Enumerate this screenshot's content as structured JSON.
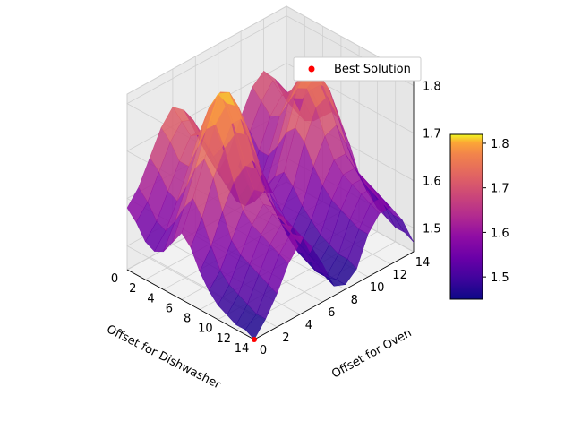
{
  "chart_data": {
    "type": "surface3d",
    "x_label": "Offset for Dishwasher",
    "y_label": "Offset for Oven",
    "x_ticks": [
      "0",
      "2",
      "4",
      "6",
      "8",
      "10",
      "12",
      "14"
    ],
    "y_ticks": [
      "0",
      "2",
      "4",
      "6",
      "8",
      "10",
      "12",
      "14"
    ],
    "z_ticks": [
      "1.5",
      "1.6",
      "1.7",
      "1.8"
    ],
    "x_range": [
      0,
      14
    ],
    "y_range": [
      0,
      14
    ],
    "z_range": [
      1.45,
      1.82
    ],
    "colormap": "plasma",
    "colorbar_ticks": [
      "1.5",
      "1.6",
      "1.7",
      "1.8"
    ],
    "colorbar_range": [
      1.45,
      1.82
    ],
    "grid": true,
    "legend": {
      "placement": "top-right",
      "entries": [
        {
          "label": "Best Solution",
          "marker": "dot",
          "color": "#ff0000"
        }
      ]
    },
    "best_solution": {
      "x": 14,
      "y": 0,
      "z": 1.45
    },
    "surface_z": [
      [
        1.58,
        1.61,
        1.66,
        1.71,
        1.74,
        1.72,
        1.66,
        1.6,
        1.55,
        1.58,
        1.64,
        1.69,
        1.71,
        1.68,
        1.62
      ],
      [
        1.56,
        1.59,
        1.64,
        1.69,
        1.72,
        1.71,
        1.65,
        1.58,
        1.53,
        1.56,
        1.62,
        1.67,
        1.7,
        1.67,
        1.61
      ],
      [
        1.53,
        1.56,
        1.61,
        1.66,
        1.7,
        1.69,
        1.63,
        1.56,
        1.51,
        1.53,
        1.59,
        1.65,
        1.68,
        1.66,
        1.6
      ],
      [
        1.52,
        1.55,
        1.6,
        1.66,
        1.72,
        1.73,
        1.66,
        1.57,
        1.51,
        1.53,
        1.59,
        1.66,
        1.7,
        1.67,
        1.61
      ],
      [
        1.53,
        1.58,
        1.64,
        1.71,
        1.78,
        1.8,
        1.72,
        1.61,
        1.53,
        1.55,
        1.62,
        1.7,
        1.74,
        1.7,
        1.63
      ],
      [
        1.56,
        1.62,
        1.69,
        1.76,
        1.82,
        1.81,
        1.74,
        1.64,
        1.56,
        1.58,
        1.66,
        1.74,
        1.77,
        1.72,
        1.65
      ],
      [
        1.59,
        1.65,
        1.72,
        1.78,
        1.81,
        1.79,
        1.72,
        1.63,
        1.57,
        1.6,
        1.68,
        1.75,
        1.77,
        1.72,
        1.64
      ],
      [
        1.57,
        1.62,
        1.69,
        1.74,
        1.76,
        1.74,
        1.67,
        1.59,
        1.54,
        1.58,
        1.66,
        1.72,
        1.73,
        1.67,
        1.6
      ],
      [
        1.53,
        1.57,
        1.63,
        1.68,
        1.7,
        1.68,
        1.61,
        1.55,
        1.51,
        1.55,
        1.62,
        1.67,
        1.68,
        1.62,
        1.55
      ],
      [
        1.5,
        1.53,
        1.58,
        1.63,
        1.66,
        1.64,
        1.58,
        1.52,
        1.49,
        1.53,
        1.59,
        1.63,
        1.63,
        1.58,
        1.52
      ],
      [
        1.48,
        1.51,
        1.56,
        1.61,
        1.64,
        1.62,
        1.56,
        1.5,
        1.48,
        1.51,
        1.57,
        1.61,
        1.61,
        1.56,
        1.5
      ],
      [
        1.47,
        1.5,
        1.55,
        1.6,
        1.63,
        1.61,
        1.55,
        1.49,
        1.47,
        1.5,
        1.56,
        1.6,
        1.6,
        1.55,
        1.49
      ],
      [
        1.46,
        1.49,
        1.54,
        1.59,
        1.62,
        1.6,
        1.54,
        1.48,
        1.46,
        1.49,
        1.55,
        1.59,
        1.59,
        1.54,
        1.48
      ],
      [
        1.46,
        1.48,
        1.53,
        1.58,
        1.61,
        1.59,
        1.53,
        1.48,
        1.46,
        1.49,
        1.54,
        1.58,
        1.58,
        1.53,
        1.48
      ],
      [
        1.45,
        1.48,
        1.52,
        1.57,
        1.6,
        1.58,
        1.53,
        1.47,
        1.46,
        1.48,
        1.54,
        1.57,
        1.57,
        1.53,
        1.47
      ]
    ]
  }
}
